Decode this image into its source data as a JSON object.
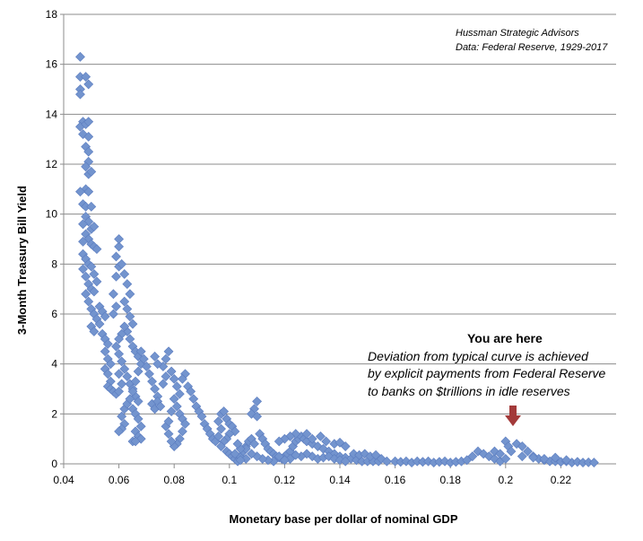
{
  "chart_data": {
    "type": "scatter",
    "xlabel": "Monetary base per dollar of nominal GDP",
    "ylabel": "3-Month Treasury Bill Yield",
    "xlim": [
      0.04,
      0.24
    ],
    "ylim": [
      0,
      18
    ],
    "x_ticks": [
      "0.04",
      "0.06",
      "0.08",
      "0.1",
      "0.12",
      "0.14",
      "0.16",
      "0.18",
      "0.2",
      "0.22"
    ],
    "y_ticks": [
      "0",
      "2",
      "4",
      "6",
      "8",
      "10",
      "12",
      "14",
      "16",
      "18"
    ],
    "grid": "horizontal",
    "marker": "diamond",
    "point_color": "#7394CE",
    "point_edge_color": "#5B7CBF",
    "arrow_color": "#A33A3A",
    "source_lines": [
      "Hussman Strategic Advisors",
      "Data: Federal Reserve, 1929-2017"
    ],
    "annotation": {
      "title": "You are here",
      "lines": [
        "Deviation from typical curve is achieved",
        "by explicit payments from Federal Reserve",
        "to banks on $trillions in idle reserves"
      ]
    },
    "points": [
      [
        0.046,
        16.3
      ],
      [
        0.046,
        15.5
      ],
      [
        0.048,
        15.5
      ],
      [
        0.049,
        15.2
      ],
      [
        0.046,
        15.0
      ],
      [
        0.046,
        14.8
      ],
      [
        0.047,
        13.7
      ],
      [
        0.046,
        13.5
      ],
      [
        0.048,
        13.6
      ],
      [
        0.049,
        13.7
      ],
      [
        0.047,
        13.2
      ],
      [
        0.049,
        13.1
      ],
      [
        0.048,
        12.7
      ],
      [
        0.049,
        12.5
      ],
      [
        0.049,
        12.1
      ],
      [
        0.048,
        11.9
      ],
      [
        0.049,
        11.6
      ],
      [
        0.05,
        11.7
      ],
      [
        0.048,
        11.0
      ],
      [
        0.049,
        10.9
      ],
      [
        0.046,
        10.9
      ],
      [
        0.047,
        10.4
      ],
      [
        0.048,
        10.3
      ],
      [
        0.05,
        10.3
      ],
      [
        0.048,
        9.9
      ],
      [
        0.049,
        9.7
      ],
      [
        0.047,
        9.6
      ],
      [
        0.05,
        9.4
      ],
      [
        0.051,
        9.5
      ],
      [
        0.048,
        9.2
      ],
      [
        0.049,
        9.0
      ],
      [
        0.047,
        8.9
      ],
      [
        0.05,
        8.8
      ],
      [
        0.051,
        8.7
      ],
      [
        0.052,
        8.6
      ],
      [
        0.047,
        8.4
      ],
      [
        0.048,
        8.2
      ],
      [
        0.049,
        8.0
      ],
      [
        0.05,
        7.9
      ],
      [
        0.051,
        7.6
      ],
      [
        0.047,
        7.8
      ],
      [
        0.048,
        7.5
      ],
      [
        0.049,
        7.2
      ],
      [
        0.05,
        7.0
      ],
      [
        0.051,
        6.9
      ],
      [
        0.052,
        7.3
      ],
      [
        0.048,
        6.8
      ],
      [
        0.049,
        6.5
      ],
      [
        0.05,
        6.2
      ],
      [
        0.051,
        6.0
      ],
      [
        0.052,
        5.8
      ],
      [
        0.053,
        5.6
      ],
      [
        0.05,
        5.5
      ],
      [
        0.051,
        5.3
      ],
      [
        0.053,
        6.3
      ],
      [
        0.054,
        6.1
      ],
      [
        0.055,
        5.9
      ],
      [
        0.054,
        5.2
      ],
      [
        0.055,
        5.0
      ],
      [
        0.056,
        4.8
      ],
      [
        0.055,
        4.5
      ],
      [
        0.056,
        4.2
      ],
      [
        0.057,
        4.0
      ],
      [
        0.055,
        3.8
      ],
      [
        0.056,
        3.6
      ],
      [
        0.057,
        3.3
      ],
      [
        0.056,
        3.1
      ],
      [
        0.057,
        3.0
      ],
      [
        0.058,
        2.9
      ],
      [
        0.059,
        2.8
      ],
      [
        0.06,
        2.9
      ],
      [
        0.061,
        3.2
      ],
      [
        0.06,
        3.6
      ],
      [
        0.058,
        6.0
      ],
      [
        0.059,
        6.3
      ],
      [
        0.058,
        6.8
      ],
      [
        0.059,
        7.5
      ],
      [
        0.06,
        7.9
      ],
      [
        0.059,
        8.3
      ],
      [
        0.06,
        8.7
      ],
      [
        0.06,
        9.0
      ],
      [
        0.061,
        8.0
      ],
      [
        0.062,
        7.6
      ],
      [
        0.063,
        7.2
      ],
      [
        0.064,
        6.8
      ],
      [
        0.062,
        6.5
      ],
      [
        0.063,
        6.2
      ],
      [
        0.064,
        5.9
      ],
      [
        0.065,
        5.6
      ],
      [
        0.063,
        5.3
      ],
      [
        0.064,
        5.0
      ],
      [
        0.065,
        4.7
      ],
      [
        0.066,
        4.5
      ],
      [
        0.062,
        5.5
      ],
      [
        0.061,
        5.2
      ],
      [
        0.06,
        5.0
      ],
      [
        0.059,
        4.7
      ],
      [
        0.06,
        4.4
      ],
      [
        0.061,
        4.1
      ],
      [
        0.062,
        3.8
      ],
      [
        0.063,
        3.5
      ],
      [
        0.064,
        3.2
      ],
      [
        0.065,
        3.0
      ],
      [
        0.066,
        2.7
      ],
      [
        0.067,
        2.5
      ],
      [
        0.065,
        2.2
      ],
      [
        0.066,
        2.0
      ],
      [
        0.067,
        1.8
      ],
      [
        0.068,
        1.5
      ],
      [
        0.066,
        1.3
      ],
      [
        0.067,
        1.1
      ],
      [
        0.068,
        1.0
      ],
      [
        0.065,
        0.9
      ],
      [
        0.066,
        0.9
      ],
      [
        0.062,
        1.6
      ],
      [
        0.061,
        1.4
      ],
      [
        0.06,
        1.3
      ],
      [
        0.061,
        1.9
      ],
      [
        0.062,
        2.2
      ],
      [
        0.063,
        2.4
      ],
      [
        0.064,
        2.6
      ],
      [
        0.065,
        2.9
      ],
      [
        0.066,
        3.3
      ],
      [
        0.067,
        3.7
      ],
      [
        0.068,
        4.0
      ],
      [
        0.067,
        4.3
      ],
      [
        0.068,
        4.5
      ],
      [
        0.069,
        4.2
      ],
      [
        0.07,
        3.9
      ],
      [
        0.071,
        3.6
      ],
      [
        0.072,
        3.3
      ],
      [
        0.073,
        3.0
      ],
      [
        0.074,
        2.7
      ],
      [
        0.072,
        2.4
      ],
      [
        0.073,
        2.2
      ],
      [
        0.074,
        2.5
      ],
      [
        0.075,
        2.3
      ],
      [
        0.076,
        3.2
      ],
      [
        0.077,
        3.5
      ],
      [
        0.076,
        3.9
      ],
      [
        0.077,
        4.2
      ],
      [
        0.078,
        4.5
      ],
      [
        0.074,
        4.0
      ],
      [
        0.073,
        4.3
      ],
      [
        0.079,
        3.7
      ],
      [
        0.08,
        3.4
      ],
      [
        0.081,
        3.1
      ],
      [
        0.082,
        2.8
      ],
      [
        0.08,
        2.6
      ],
      [
        0.081,
        2.3
      ],
      [
        0.082,
        2.0
      ],
      [
        0.083,
        1.8
      ],
      [
        0.084,
        1.6
      ],
      [
        0.083,
        1.3
      ],
      [
        0.082,
        1.0
      ],
      [
        0.081,
        0.8
      ],
      [
        0.08,
        0.7
      ],
      [
        0.079,
        0.9
      ],
      [
        0.078,
        1.2
      ],
      [
        0.077,
        1.5
      ],
      [
        0.078,
        1.7
      ],
      [
        0.079,
        2.1
      ],
      [
        0.084,
        3.6
      ],
      [
        0.083,
        3.4
      ],
      [
        0.085,
        3.1
      ],
      [
        0.086,
        2.9
      ],
      [
        0.087,
        2.6
      ],
      [
        0.088,
        2.3
      ],
      [
        0.089,
        2.1
      ],
      [
        0.09,
        1.9
      ],
      [
        0.091,
        1.6
      ],
      [
        0.092,
        1.4
      ],
      [
        0.093,
        1.2
      ],
      [
        0.094,
        1.0
      ],
      [
        0.095,
        0.9
      ],
      [
        0.096,
        1.1
      ],
      [
        0.097,
        1.4
      ],
      [
        0.096,
        1.7
      ],
      [
        0.097,
        2.0
      ],
      [
        0.098,
        2.1
      ],
      [
        0.099,
        1.8
      ],
      [
        0.1,
        1.6
      ],
      [
        0.101,
        1.5
      ],
      [
        0.102,
        1.3
      ],
      [
        0.1,
        1.2
      ],
      [
        0.099,
        1.0
      ],
      [
        0.098,
        0.9
      ],
      [
        0.097,
        0.7
      ],
      [
        0.099,
        0.5
      ],
      [
        0.1,
        0.4
      ],
      [
        0.101,
        0.3
      ],
      [
        0.102,
        0.2
      ],
      [
        0.103,
        0.1
      ],
      [
        0.104,
        0.3
      ],
      [
        0.105,
        0.5
      ],
      [
        0.106,
        0.7
      ],
      [
        0.107,
        0.9
      ],
      [
        0.108,
        1.0
      ],
      [
        0.106,
        0.6
      ],
      [
        0.104,
        0.6
      ],
      [
        0.103,
        0.8
      ],
      [
        0.109,
        0.8
      ],
      [
        0.11,
        2.5
      ],
      [
        0.109,
        2.2
      ],
      [
        0.108,
        2.0
      ],
      [
        0.11,
        1.9
      ],
      [
        0.111,
        1.2
      ],
      [
        0.112,
        1.0
      ],
      [
        0.113,
        0.8
      ],
      [
        0.114,
        0.6
      ],
      [
        0.115,
        0.5
      ],
      [
        0.116,
        0.4
      ],
      [
        0.117,
        0.3
      ],
      [
        0.118,
        0.25
      ],
      [
        0.119,
        0.2
      ],
      [
        0.12,
        0.3
      ],
      [
        0.121,
        0.4
      ],
      [
        0.122,
        0.5
      ],
      [
        0.123,
        0.7
      ],
      [
        0.124,
        0.9
      ],
      [
        0.125,
        1.0
      ],
      [
        0.126,
        1.1
      ],
      [
        0.124,
        1.2
      ],
      [
        0.122,
        1.1
      ],
      [
        0.12,
        1.0
      ],
      [
        0.118,
        0.9
      ],
      [
        0.127,
        1.0
      ],
      [
        0.128,
        0.9
      ],
      [
        0.13,
        0.8
      ],
      [
        0.132,
        0.7
      ],
      [
        0.134,
        0.6
      ],
      [
        0.136,
        0.5
      ],
      [
        0.138,
        0.4
      ],
      [
        0.14,
        0.3
      ],
      [
        0.142,
        0.25
      ],
      [
        0.144,
        0.2
      ],
      [
        0.146,
        0.15
      ],
      [
        0.148,
        0.1
      ],
      [
        0.15,
        0.1
      ],
      [
        0.152,
        0.1
      ],
      [
        0.154,
        0.1
      ],
      [
        0.13,
        0.3
      ],
      [
        0.132,
        0.2
      ],
      [
        0.134,
        0.25
      ],
      [
        0.136,
        0.3
      ],
      [
        0.138,
        0.2
      ],
      [
        0.14,
        0.15
      ],
      [
        0.142,
        0.1
      ],
      [
        0.128,
        0.4
      ],
      [
        0.126,
        0.3
      ],
      [
        0.124,
        0.35
      ],
      [
        0.122,
        0.2
      ],
      [
        0.12,
        0.15
      ],
      [
        0.118,
        0.3
      ],
      [
        0.116,
        0.1
      ],
      [
        0.114,
        0.15
      ],
      [
        0.112,
        0.2
      ],
      [
        0.11,
        0.3
      ],
      [
        0.108,
        0.4
      ],
      [
        0.106,
        0.2
      ],
      [
        0.104,
        0.15
      ],
      [
        0.102,
        0.4
      ],
      [
        0.135,
        0.9
      ],
      [
        0.138,
        0.8
      ],
      [
        0.14,
        0.85
      ],
      [
        0.142,
        0.7
      ],
      [
        0.13,
        1.0
      ],
      [
        0.133,
        1.1
      ],
      [
        0.128,
        1.2
      ],
      [
        0.145,
        0.4
      ],
      [
        0.147,
        0.35
      ],
      [
        0.149,
        0.4
      ],
      [
        0.151,
        0.3
      ],
      [
        0.153,
        0.35
      ],
      [
        0.155,
        0.2
      ],
      [
        0.157,
        0.1
      ],
      [
        0.16,
        0.1
      ],
      [
        0.162,
        0.08
      ],
      [
        0.164,
        0.1
      ],
      [
        0.166,
        0.05
      ],
      [
        0.168,
        0.1
      ],
      [
        0.17,
        0.08
      ],
      [
        0.172,
        0.1
      ],
      [
        0.174,
        0.05
      ],
      [
        0.176,
        0.08
      ],
      [
        0.178,
        0.1
      ],
      [
        0.18,
        0.05
      ],
      [
        0.182,
        0.08
      ],
      [
        0.184,
        0.1
      ],
      [
        0.186,
        0.15
      ],
      [
        0.188,
        0.3
      ],
      [
        0.19,
        0.5
      ],
      [
        0.192,
        0.4
      ],
      [
        0.194,
        0.3
      ],
      [
        0.196,
        0.2
      ],
      [
        0.198,
        0.1
      ],
      [
        0.2,
        0.2
      ],
      [
        0.2,
        0.9
      ],
      [
        0.201,
        0.7
      ],
      [
        0.202,
        0.5
      ],
      [
        0.204,
        0.8
      ],
      [
        0.206,
        0.7
      ],
      [
        0.208,
        0.5
      ],
      [
        0.21,
        0.3
      ],
      [
        0.212,
        0.2
      ],
      [
        0.214,
        0.15
      ],
      [
        0.216,
        0.1
      ],
      [
        0.218,
        0.1
      ],
      [
        0.22,
        0.08
      ],
      [
        0.222,
        0.1
      ],
      [
        0.224,
        0.05
      ],
      [
        0.226,
        0.08
      ],
      [
        0.228,
        0.05
      ],
      [
        0.23,
        0.06
      ],
      [
        0.232,
        0.05
      ],
      [
        0.196,
        0.5
      ],
      [
        0.198,
        0.4
      ],
      [
        0.206,
        0.3
      ],
      [
        0.21,
        0.25
      ],
      [
        0.214,
        0.2
      ],
      [
        0.218,
        0.25
      ],
      [
        0.222,
        0.15
      ]
    ]
  }
}
